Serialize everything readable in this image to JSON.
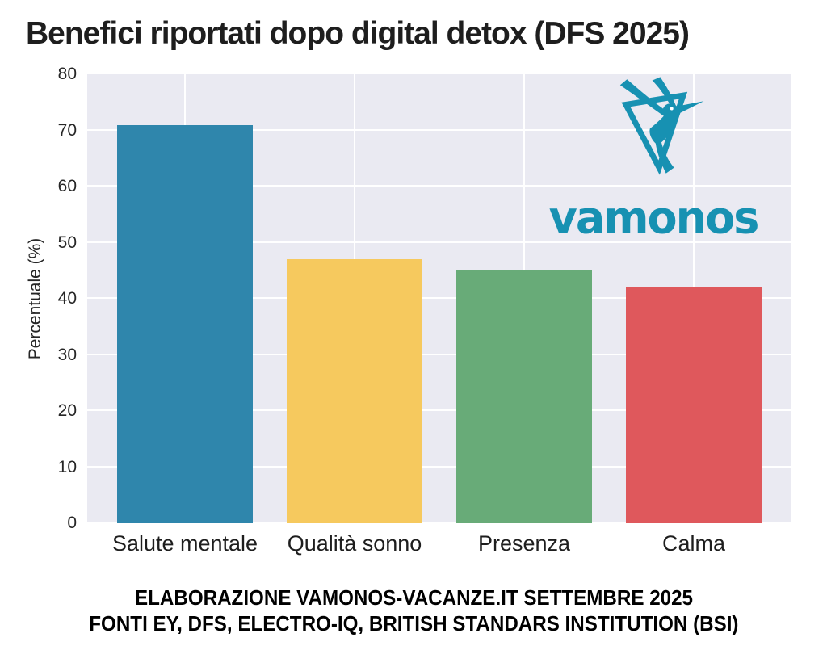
{
  "title": "Benefici riportati dopo digital detox (DFS 2025)",
  "logo": {
    "brand": "vamonos",
    "icon": "hummingbird-in-triangle-icon",
    "color": "#1791b2"
  },
  "footer": {
    "line1": "ELABORAZIONE VAMONOS-VACANZE.IT SETTEMBRE 2025",
    "line2": "FONTI EY, DFS, ELECTRO-IQ, BRITISH STANDARS INSTITUTION (BSI)"
  },
  "chart_data": {
    "type": "bar",
    "title": "Benefici riportati dopo digital detox (DFS 2025)",
    "categories": [
      "Salute mentale",
      "Qualità sonno",
      "Presenza",
      "Calma"
    ],
    "values": [
      71,
      47,
      45,
      42
    ],
    "bar_colors": [
      "#2f86ac",
      "#f6c95e",
      "#68ab78",
      "#df585c"
    ],
    "xlabel": "",
    "ylabel": "Percentuale (%)",
    "ylim": [
      0,
      80
    ],
    "yticks": [
      0,
      10,
      20,
      30,
      40,
      50,
      60,
      70,
      80
    ],
    "grid": "on",
    "grid_color": "#ffffff",
    "plot_background": "#eaeaf2",
    "legend": "none"
  }
}
